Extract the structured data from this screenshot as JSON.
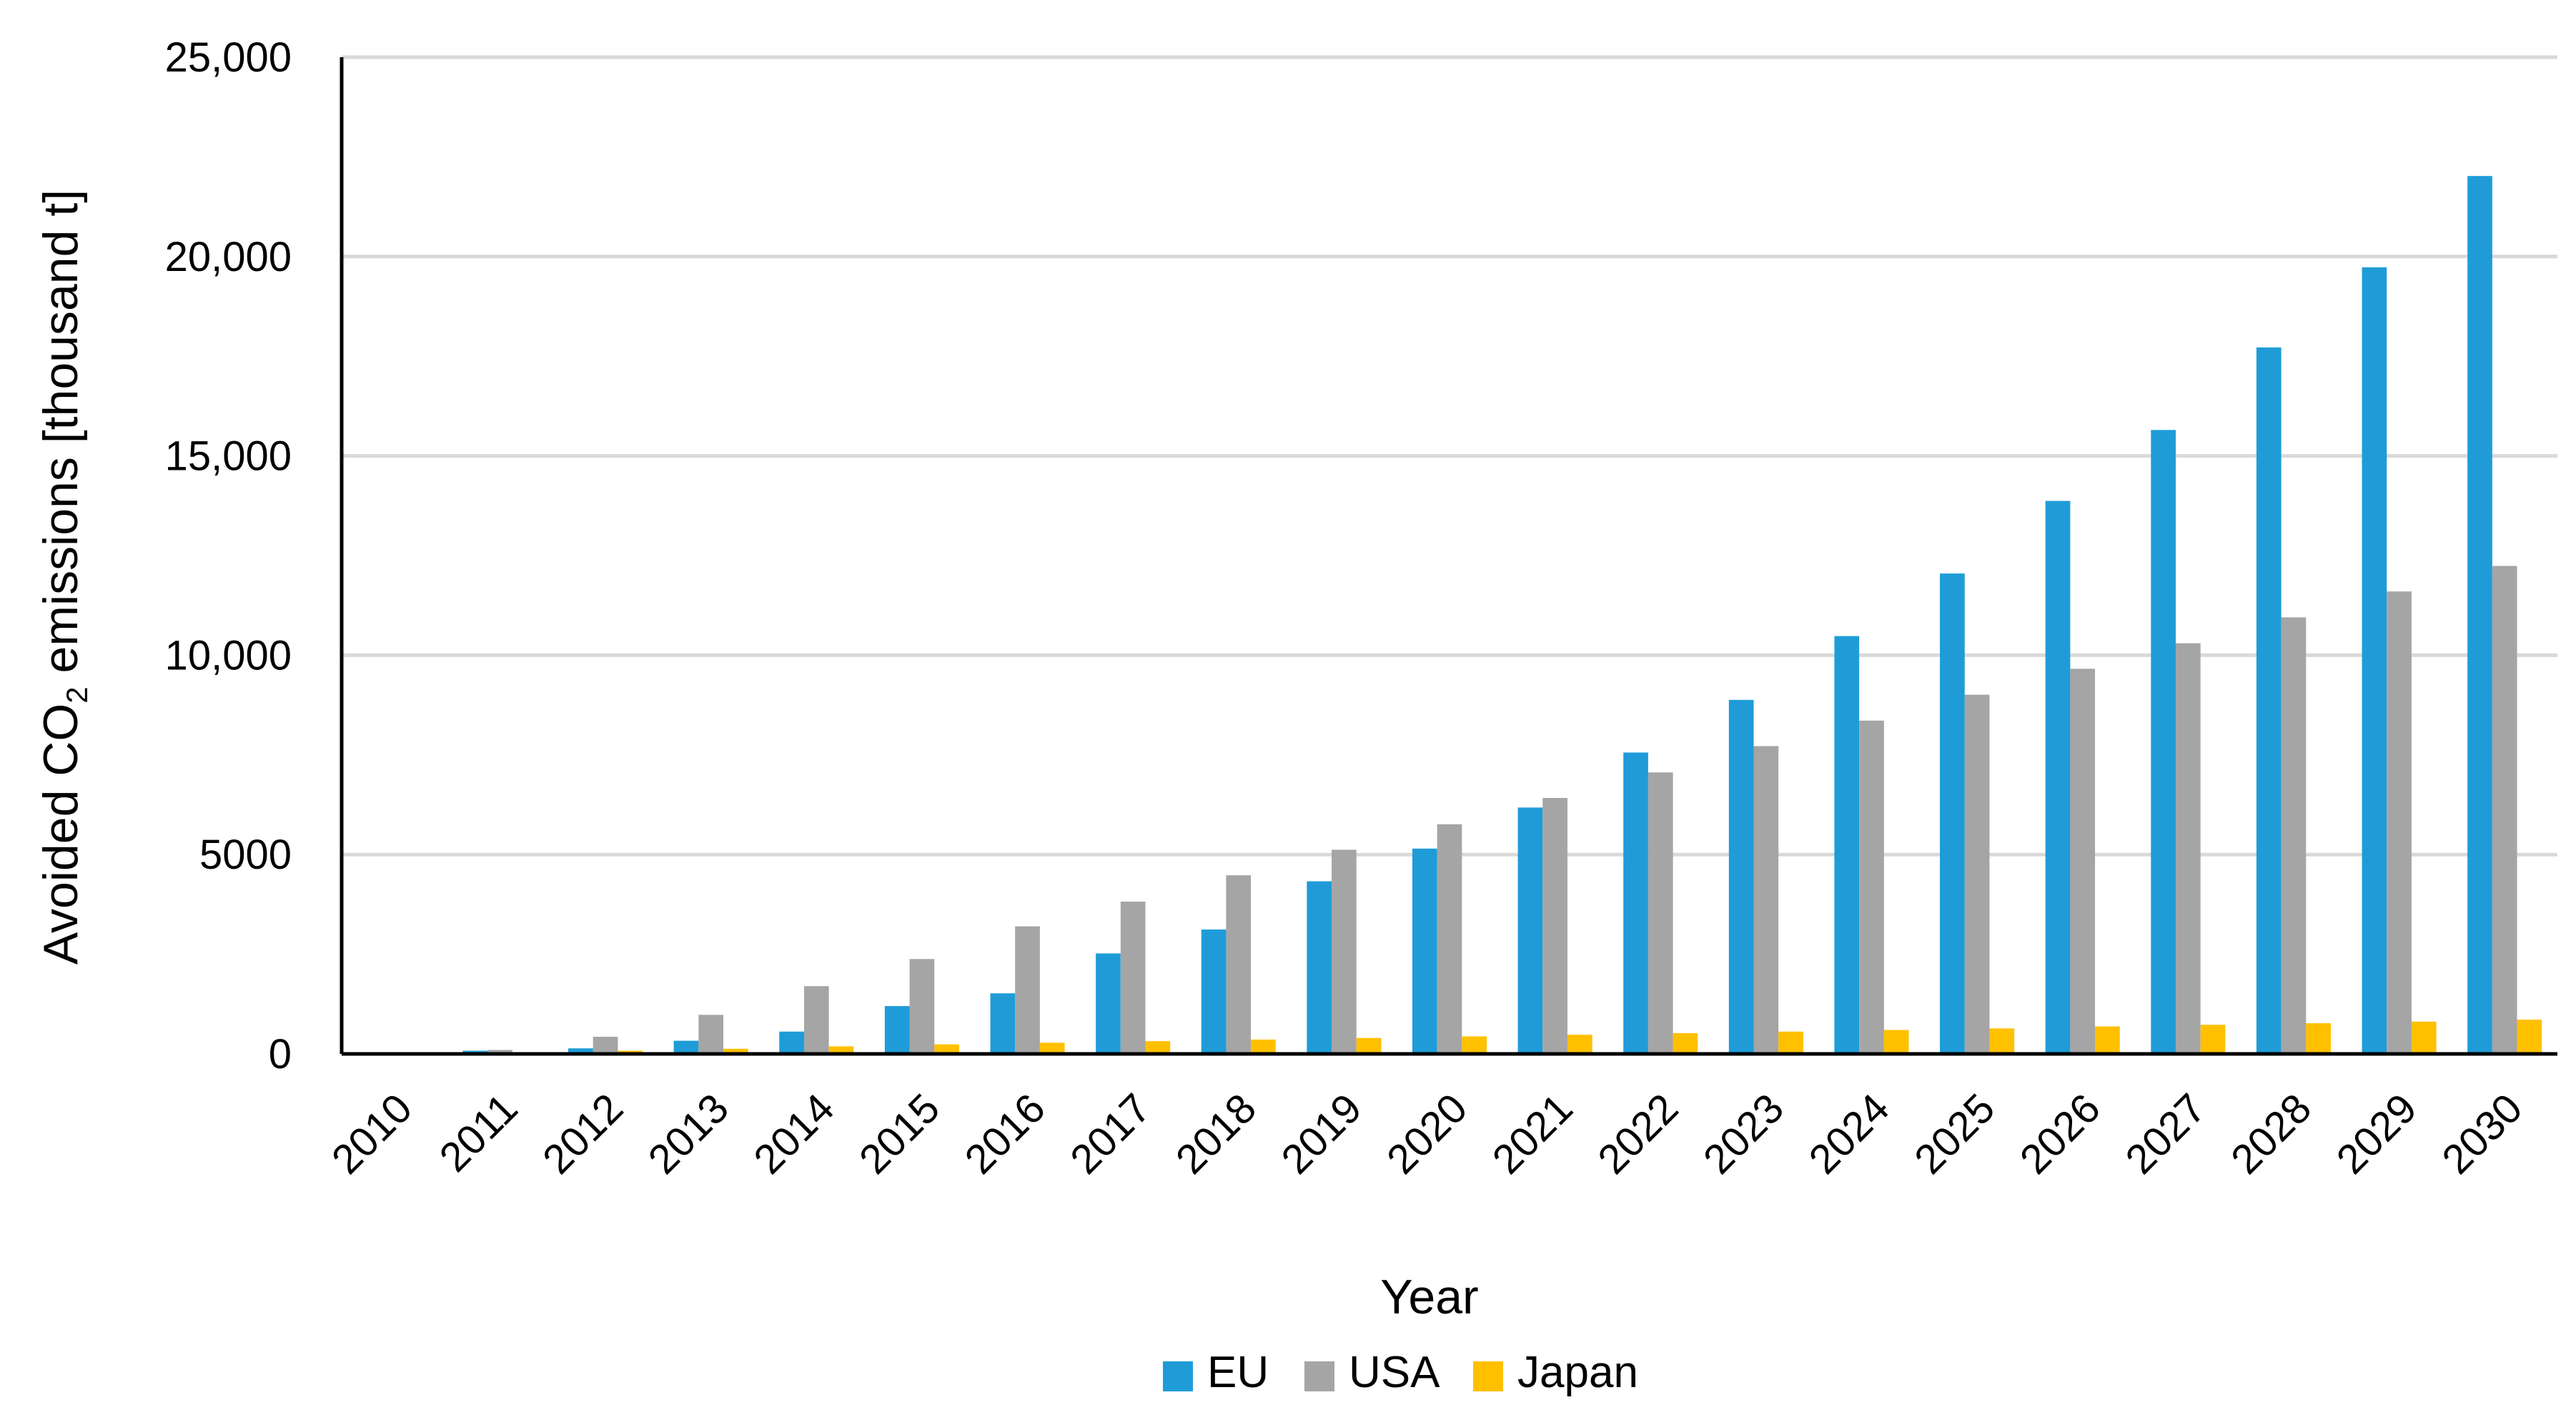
{
  "chart_data": {
    "type": "bar",
    "title": "",
    "xlabel": "Year",
    "ylabel_main": "Avoided CO",
    "ylabel_subscript": "2",
    "ylabel_rest": " emissions [thousand t]",
    "ylim": [
      0,
      25000
    ],
    "yticks": [
      0,
      5000,
      10000,
      15000,
      20000,
      25000
    ],
    "ytick_labels": [
      "0",
      "5000",
      "10,000",
      "15,000",
      "20,000",
      "25,000"
    ],
    "grid": true,
    "legend_position": "bottom-center",
    "categories": [
      "2010",
      "2011",
      "2012",
      "2013",
      "2014",
      "2015",
      "2016",
      "2017",
      "2018",
      "2019",
      "2020",
      "2021",
      "2022",
      "2023",
      "2024",
      "2025",
      "2026",
      "2027",
      "2028",
      "2029",
      "2030"
    ],
    "series": [
      {
        "name": "EU",
        "color": "#1f9cd8",
        "values": [
          30,
          80,
          140,
          330,
          560,
          1200,
          1520,
          2520,
          3120,
          4330,
          5150,
          6180,
          7560,
          8880,
          10480,
          12050,
          13870,
          15650,
          17720,
          19730,
          22020
        ]
      },
      {
        "name": "USA",
        "color": "#a5a5a5",
        "values": [
          20,
          100,
          430,
          980,
          1700,
          2380,
          3200,
          3820,
          4480,
          5120,
          5760,
          6420,
          7060,
          7720,
          8360,
          9010,
          9660,
          10300,
          10950,
          11600,
          12240
        ]
      },
      {
        "name": "Japan",
        "color": "#ffc000",
        "values": [
          10,
          40,
          80,
          130,
          190,
          240,
          280,
          320,
          360,
          400,
          440,
          480,
          520,
          560,
          600,
          640,
          690,
          730,
          770,
          810,
          860
        ]
      }
    ]
  }
}
